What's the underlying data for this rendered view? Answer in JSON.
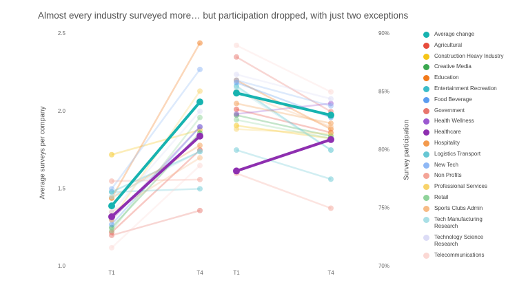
{
  "chart_data": {
    "type": "slope",
    "title": "Almost every industry surveyed more… but participation dropped, with just two exceptions",
    "categories": [
      "T1",
      "T4"
    ],
    "ylabel": "Average surveys per company",
    "ylim": [
      1,
      2.5
    ],
    "yticks": [
      {
        "value": 1,
        "label": "1.0"
      },
      {
        "value": 1.5,
        "label": "1.5"
      },
      {
        "value": 2,
        "label": "2.0"
      },
      {
        "value": 2.5,
        "label": "2.5"
      }
    ],
    "y2label": "Survey participation",
    "y2lim": [
      70,
      90
    ],
    "y2ticks": [
      {
        "value": 70,
        "label": "70%"
      },
      {
        "value": 75,
        "label": "75%"
      },
      {
        "value": 80,
        "label": "80%"
      },
      {
        "value": 85,
        "label": "85%"
      },
      {
        "value": 90,
        "label": "90%"
      }
    ],
    "legend": "right",
    "series": [
      {
        "name": "Average change",
        "color": "#17b3b0",
        "emphasis": true,
        "values": [
          1.39,
          2.06
        ],
        "participation": [
          84.9,
          83.0
        ]
      },
      {
        "name": "Agricultural",
        "color": "#e74c3c",
        "values": [
          1.22,
          1.75
        ],
        "participation": [
          83.5,
          81.5
        ]
      },
      {
        "name": "Construction Heavy Industry",
        "color": "#f5c518",
        "values": [
          1.72,
          1.88
        ],
        "participation": [
          82.1,
          81.0
        ]
      },
      {
        "name": "Creative Media",
        "color": "#3aa84f",
        "values": [
          1.25,
          1.86
        ],
        "participation": [
          83.0,
          81.2
        ]
      },
      {
        "name": "Education",
        "color": "#f27a1a",
        "values": [
          1.44,
          2.44
        ],
        "participation": [
          86.0,
          81.8
        ]
      },
      {
        "name": "Entertainment Recreation",
        "color": "#3bbcc9",
        "values": [
          1.48,
          1.74
        ],
        "participation": [
          85.5,
          80.0
        ]
      },
      {
        "name": "Food Beverage",
        "color": "#5b9cf0",
        "values": [
          1.27,
          1.9
        ],
        "participation": [
          85.8,
          82.8
        ]
      },
      {
        "name": "Government",
        "color": "#e8766d",
        "values": [
          1.2,
          1.36
        ],
        "participation": [
          88.0,
          83.3
        ]
      },
      {
        "name": "Health Wellness",
        "color": "#9b59d0",
        "values": [
          1.3,
          1.9
        ],
        "participation": [
          83.1,
          84.0
        ]
      },
      {
        "name": "Healthcare",
        "color": "#8e2fb0",
        "emphasis": true,
        "values": [
          1.32,
          1.84
        ],
        "participation": [
          78.2,
          80.9
        ]
      },
      {
        "name": "Hospitality",
        "color": "#f39a4d",
        "values": [
          1.44,
          1.78
        ],
        "participation": [
          84.0,
          82.3
        ]
      },
      {
        "name": "Logistics Transport",
        "color": "#67c7d4",
        "values": [
          1.48,
          1.5
        ],
        "participation": [
          80.0,
          77.5
        ]
      },
      {
        "name": "New Tech",
        "color": "#8fb8f5",
        "values": [
          1.5,
          2.27
        ],
        "participation": [
          86.0,
          83.8
        ]
      },
      {
        "name": "Non Profits",
        "color": "#f4a497",
        "values": [
          1.55,
          1.56
        ],
        "participation": [
          78.0,
          75.0
        ]
      },
      {
        "name": "Professional Services",
        "color": "#f8d36a",
        "values": [
          1.3,
          2.13
        ],
        "participation": [
          81.8,
          81.4
        ]
      },
      {
        "name": "Retail",
        "color": "#8fd39a",
        "values": [
          1.23,
          1.96
        ],
        "participation": [
          82.6,
          81.0
        ]
      },
      {
        "name": "Sports Clubs Admin",
        "color": "#f7bb86",
        "values": [
          1.35,
          1.7
        ],
        "participation": [
          85.0,
          82.0
        ]
      },
      {
        "name": "Tech Manufacturing\nResearch",
        "color": "#a9dfe6",
        "values": [
          1.45,
          1.74
        ],
        "participation": [
          85.3,
          80.0
        ]
      },
      {
        "name": "Technology Science\nResearch",
        "color": "#dcdcf6",
        "values": [
          1.35,
          2.0
        ],
        "participation": [
          86.5,
          84.4
        ]
      },
      {
        "name": "Telecommunications",
        "color": "#fbd8d4",
        "values": [
          1.12,
          1.65
        ],
        "participation": [
          89.0,
          85.0
        ]
      }
    ]
  }
}
